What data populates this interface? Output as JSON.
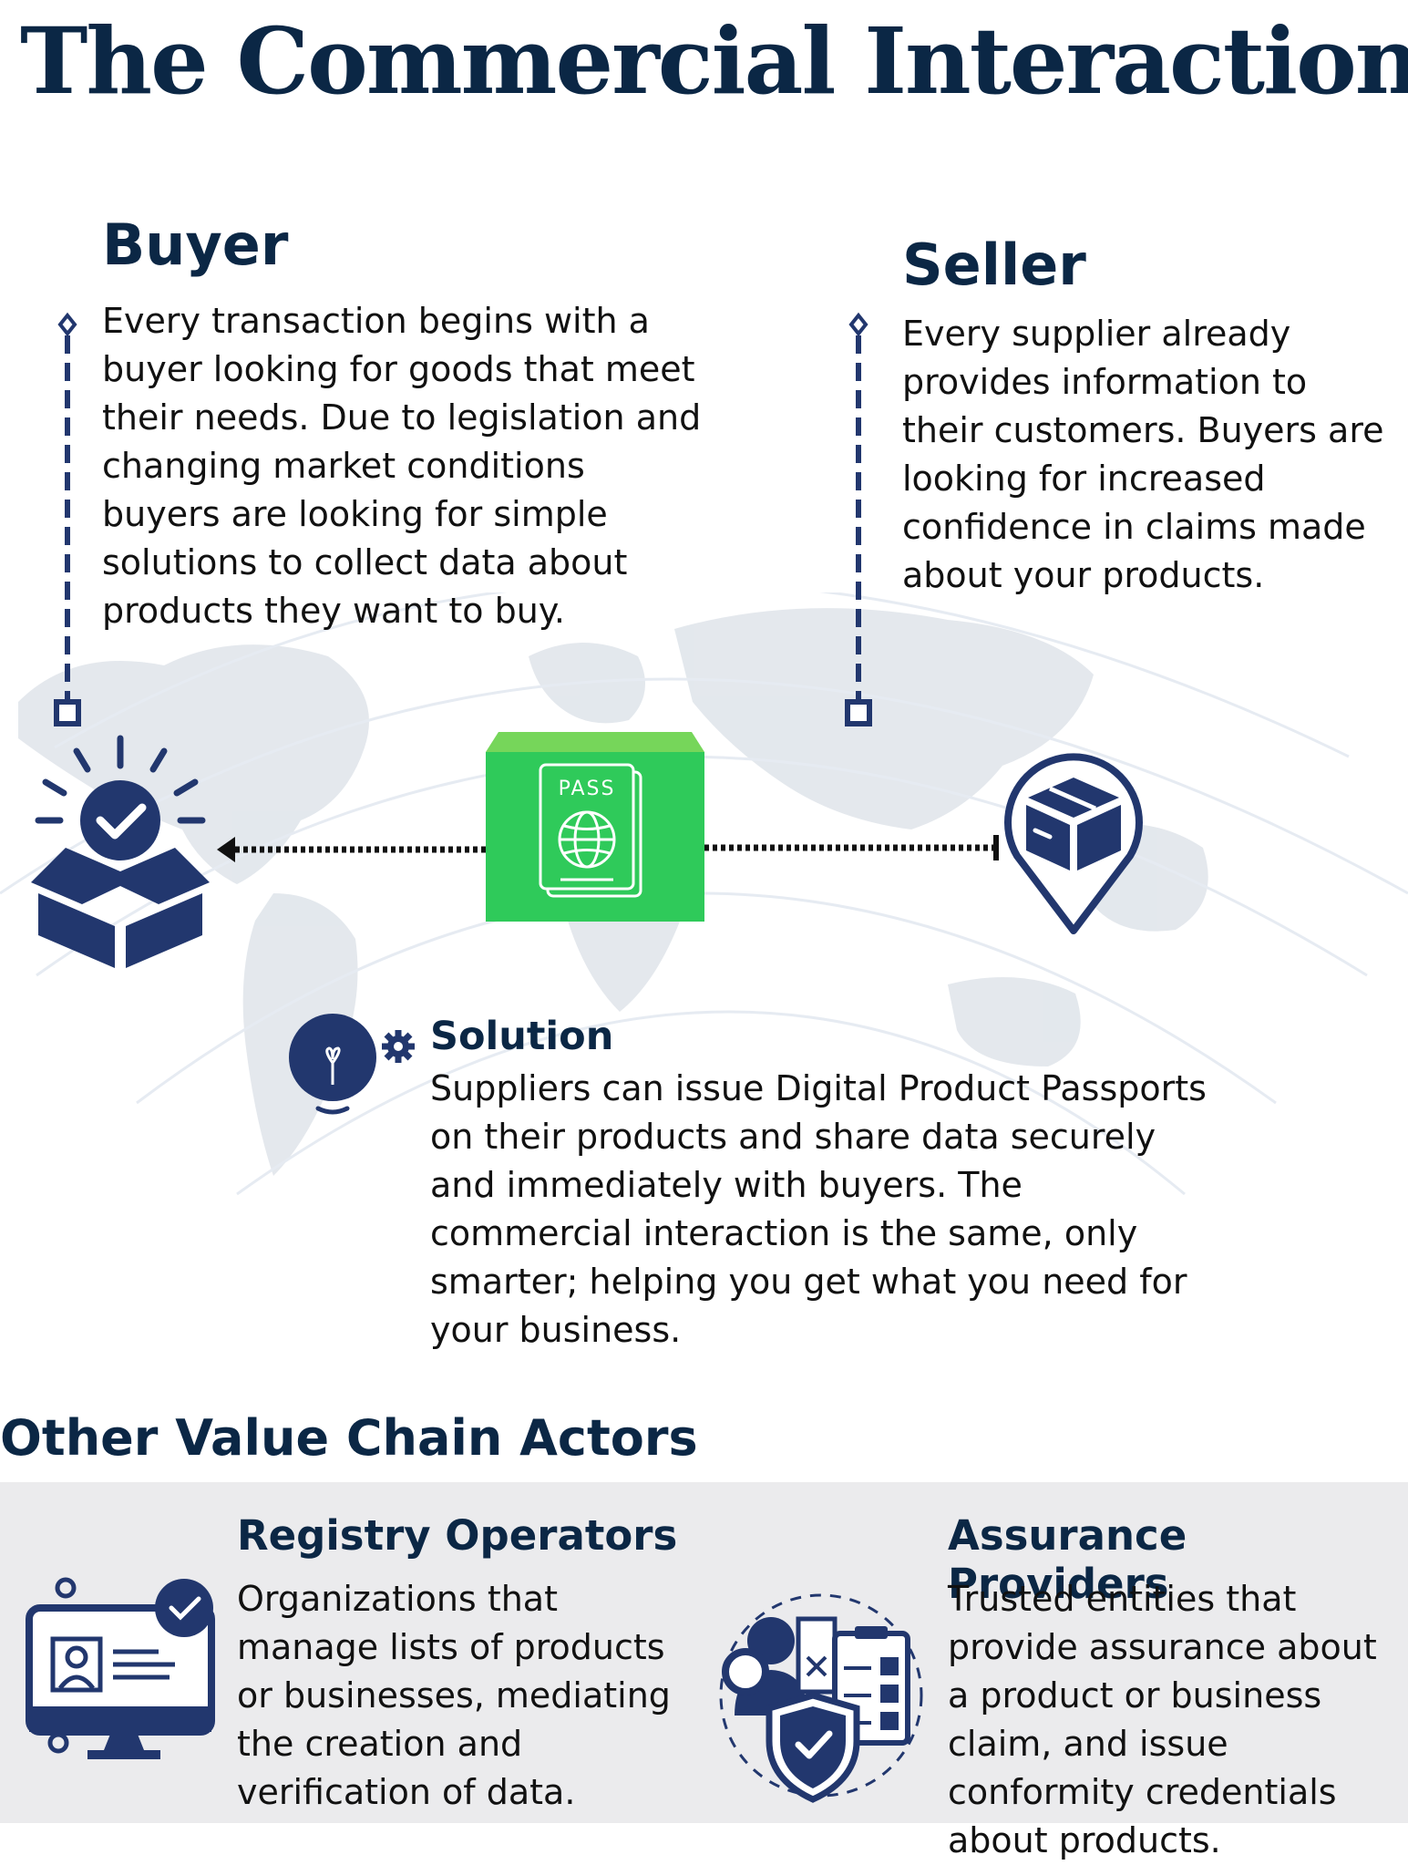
{
  "page": {
    "title": "The Commercial Interaction"
  },
  "buyer": {
    "title": "Buyer",
    "text": "Every transaction begins with a buyer looking for goods that meet their needs. Due to legislation and changing market conditions buyers are looking for simple solutions to collect data about products they want to buy."
  },
  "seller": {
    "title": "Seller",
    "text": "Every supplier already provides information to their customers. Buyers are looking for increased confidence in claims made about your products."
  },
  "passport": {
    "label": "PASS"
  },
  "solution": {
    "title": "Solution",
    "text": "Suppliers can issue Digital Product Passports on their products and share data securely and immediately with buyers. The commercial interaction is the same, only smarter; helping you get what you need for your business."
  },
  "other_actors": {
    "title": "Other Value Chain Actors",
    "registry": {
      "title": "Registry Operators",
      "text": "Organizations  that manage lists of products or businesses, mediating the creation and verification of data."
    },
    "assurance": {
      "title": "Assurance Providers",
      "text": "Trusted entities that provide assurance about a product or business claim, and issue conformity credentials about products."
    }
  },
  "colors": {
    "navy": "#0b2745",
    "icon_blue": "#22376e",
    "passport_green": "#2fca5a",
    "passport_green_top": "#76d65a",
    "panel_gray": "#ebebed",
    "map_gray": "#dfe4ea"
  },
  "icons": {
    "buyer": "box-with-checkmark-icon",
    "seller": "location-pin-package-icon",
    "passport": "passport-icon",
    "solution": "lightbulb-gear-icon",
    "registry": "computer-profile-icon",
    "assurance": "checklist-shield-icon"
  }
}
